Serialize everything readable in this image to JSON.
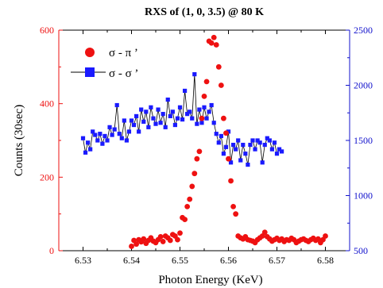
{
  "chart_data": {
    "type": "scatter",
    "title": "RXS of (1, 0, 3.5) @ 80 K",
    "xlabel": "Photon Energy (KeV)",
    "ylabel_left": "Counts (30sec)",
    "ylabel_right": "",
    "xlim": [
      6.525,
      6.585
    ],
    "ylim_left": [
      0,
      600
    ],
    "ylim_right": [
      500,
      2500
    ],
    "x_ticks": [
      "6.53",
      "6.54",
      "6.55",
      "6.56",
      "6.57",
      "6.58"
    ],
    "y_left_ticks": [
      "0",
      "200",
      "400",
      "600"
    ],
    "y_right_ticks": [
      "500",
      "1000",
      "1500",
      "2000",
      "2500"
    ],
    "grid": false,
    "legend_position": "top-left",
    "colors": {
      "left_axis": "#ee1111",
      "right_axis": "#1111cc",
      "pi_series": "#ee1111",
      "sigma_series": "#1a1aff",
      "line": "#000000"
    },
    "series": [
      {
        "name": "σ - π ’",
        "axis": "left",
        "marker": "circle",
        "x": [
          6.54,
          6.5405,
          6.541,
          6.5415,
          6.542,
          6.5425,
          6.543,
          6.5435,
          6.544,
          6.5445,
          6.545,
          6.5455,
          6.546,
          6.5465,
          6.547,
          6.5475,
          6.548,
          6.5485,
          6.549,
          6.5495,
          6.55,
          6.5505,
          6.551,
          6.5515,
          6.552,
          6.5525,
          6.553,
          6.5535,
          6.554,
          6.5545,
          6.555,
          6.5555,
          6.556,
          6.5565,
          6.557,
          6.5575,
          6.558,
          6.5585,
          6.559,
          6.5595,
          6.56,
          6.5605,
          6.561,
          6.5615,
          6.562,
          6.5625,
          6.563,
          6.5635,
          6.564,
          6.5645,
          6.565,
          6.5655,
          6.566,
          6.5665,
          6.567,
          6.5675,
          6.568,
          6.5685,
          6.569,
          6.5695,
          6.57,
          6.5705,
          6.571,
          6.5715,
          6.572,
          6.5725,
          6.573,
          6.5735,
          6.574,
          6.5745,
          6.575,
          6.5755,
          6.576,
          6.5765,
          6.577,
          6.5775,
          6.578,
          6.5785,
          6.579,
          6.5795,
          6.58
        ],
        "y": [
          12,
          28,
          18,
          30,
          24,
          32,
          20,
          28,
          35,
          26,
          22,
          30,
          38,
          25,
          40,
          35,
          28,
          44,
          40,
          30,
          48,
          90,
          85,
          120,
          140,
          175,
          210,
          250,
          270,
          360,
          420,
          460,
          570,
          565,
          580,
          560,
          500,
          450,
          360,
          320,
          250,
          190,
          120,
          100,
          40,
          35,
          32,
          38,
          30,
          28,
          26,
          22,
          30,
          35,
          40,
          50,
          38,
          32,
          26,
          30,
          34,
          28,
          32,
          25,
          30,
          28,
          34,
          30,
          22,
          26,
          30,
          32,
          28,
          25,
          30,
          34,
          28,
          32,
          22,
          30,
          40
        ]
      },
      {
        "name": "σ - σ ’",
        "axis": "right",
        "marker": "square",
        "x": [
          6.53,
          6.5305,
          6.531,
          6.5315,
          6.532,
          6.5325,
          6.533,
          6.5335,
          6.534,
          6.5345,
          6.535,
          6.5355,
          6.536,
          6.5365,
          6.537,
          6.5375,
          6.538,
          6.5385,
          6.539,
          6.5395,
          6.54,
          6.5405,
          6.541,
          6.5415,
          6.542,
          6.5425,
          6.543,
          6.5435,
          6.544,
          6.5445,
          6.545,
          6.5455,
          6.546,
          6.5465,
          6.547,
          6.5475,
          6.548,
          6.5485,
          6.549,
          6.5495,
          6.55,
          6.5505,
          6.551,
          6.5515,
          6.552,
          6.5525,
          6.553,
          6.5535,
          6.554,
          6.5545,
          6.555,
          6.5555,
          6.556,
          6.5565,
          6.557,
          6.5575,
          6.558,
          6.5585,
          6.559,
          6.5595,
          6.56,
          6.5605,
          6.561,
          6.5615,
          6.562,
          6.5625,
          6.563,
          6.5635,
          6.564,
          6.5645,
          6.565,
          6.5655,
          6.566,
          6.5665,
          6.567,
          6.5675,
          6.568,
          6.5685,
          6.569,
          6.5695,
          6.57,
          6.5705,
          6.571
        ],
        "y": [
          1520,
          1390,
          1480,
          1420,
          1580,
          1550,
          1500,
          1560,
          1470,
          1540,
          1500,
          1620,
          1550,
          1600,
          1820,
          1560,
          1520,
          1680,
          1500,
          1580,
          1680,
          1640,
          1720,
          1580,
          1780,
          1670,
          1760,
          1620,
          1800,
          1700,
          1650,
          1780,
          1660,
          1740,
          1620,
          1870,
          1720,
          1760,
          1640,
          1700,
          1800,
          1690,
          1950,
          1740,
          1760,
          1700,
          2100,
          1650,
          1780,
          1660,
          1800,
          1700,
          1760,
          1820,
          1660,
          1560,
          1480,
          1540,
          1380,
          1440,
          1580,
          1300,
          1460,
          1420,
          1500,
          1320,
          1460,
          1380,
          1280,
          1460,
          1500,
          1420,
          1500,
          1480,
          1300,
          1460,
          1520,
          1500,
          1420,
          1480,
          1380,
          1420,
          1400
        ]
      }
    ]
  }
}
